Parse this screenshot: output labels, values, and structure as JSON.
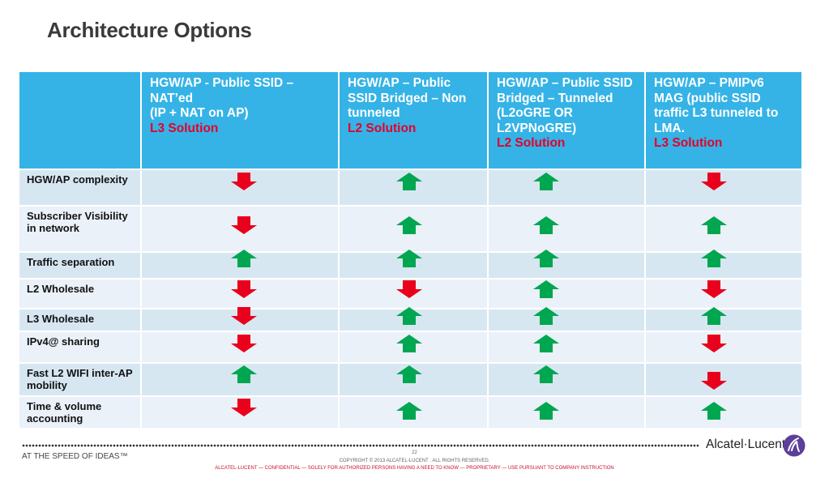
{
  "title": "Architecture Options",
  "columns": [
    {
      "text": "HGW/AP - Public SSID – NAT’ed\n(IP + NAT on AP)",
      "solution": "L3 Solution"
    },
    {
      "text": "HGW/AP – Public SSID Bridged – Non tunneled",
      "solution": "L2 Solution"
    },
    {
      "text": "HGW/AP – Public SSID Bridged – Tunneled (L2oGRE OR L2VPNoGRE)",
      "solution": "L2 Solution"
    },
    {
      "text": "HGW/AP – PMIPv6 MAG (public SSID traffic L3 tunneled to LMA.",
      "solution": "L3 Solution"
    }
  ],
  "rows": [
    {
      "label": "HGW/AP complexity",
      "values": [
        "down",
        "up",
        "up",
        "down"
      ]
    },
    {
      "label": "Subscriber Visibility in network",
      "values": [
        "down",
        "up",
        "up",
        "up"
      ]
    },
    {
      "label": "Traffic separation",
      "values": [
        "up",
        "up",
        "up",
        "up"
      ]
    },
    {
      "label": "L2 Wholesale",
      "values": [
        "down",
        "down",
        "up",
        "down"
      ]
    },
    {
      "label": "L3 Wholesale",
      "values": [
        "down",
        "up",
        "up",
        "up"
      ]
    },
    {
      "label": "IPv4@ sharing",
      "values": [
        "down",
        "up",
        "up",
        "down"
      ]
    },
    {
      "label": "Fast L2 WIFI inter-AP mobility",
      "values": [
        "up",
        "up",
        "up",
        "down"
      ]
    },
    {
      "label": "Time & volume accounting",
      "values": [
        "down",
        "up",
        "up",
        "up"
      ]
    }
  ],
  "icons": {
    "up": "green-up-arrow-icon",
    "down": "red-down-arrow-icon"
  },
  "colors": {
    "up": "#00a650",
    "down": "#e8001c",
    "header": "#35b3e6",
    "solution": "#e4002b"
  },
  "footer": {
    "tagline": "AT THE SPEED OF IDEAS™",
    "brand": "Alcatel·Lucent",
    "page_number": "22",
    "copyright": "COPYRIGHT © 2013 ALCATEL-LUCENT . ALL RIGHTS RESERVED.",
    "confidential": "ALCATEL-LUCENT — CONFIDENTIAL — SOLELY FOR AUTHORIZED PERSONS HAVING A NEED TO KNOW — PROPRIETARY — USE PURSUANT TO COMPANY INSTRUCTION"
  }
}
